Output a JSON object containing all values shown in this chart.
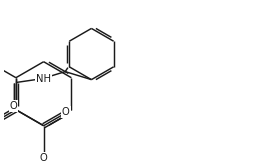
{
  "bg_color": "#ffffff",
  "line_color": "#1a1a1a",
  "lw": 1.05,
  "dbo": 0.09,
  "figsize": [
    2.67,
    1.61
  ],
  "dpi": 100,
  "xlim": [
    0,
    10.5
  ],
  "ylim": [
    0,
    6.1
  ],
  "font_size": 7.2,
  "NH_label": "NH",
  "O_lac_label": "O",
  "O_amide_label": "O"
}
